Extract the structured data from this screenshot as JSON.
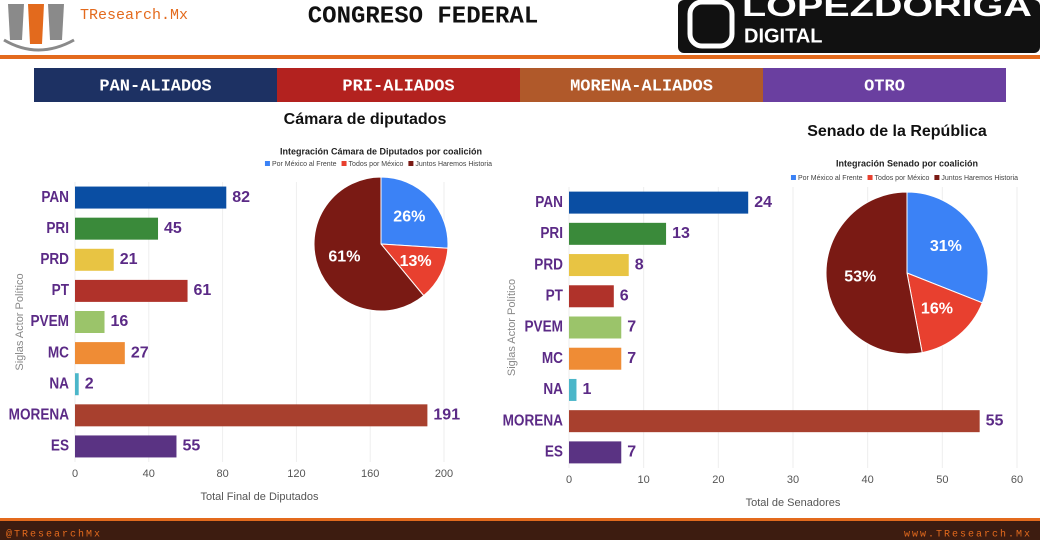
{
  "header": {
    "brand": "TResearch.Mx",
    "title": "CONGRESO FEDERAL",
    "logo_line1": "LOPEZDORIGA",
    "logo_line2": "DIGITAL"
  },
  "coalitions": [
    {
      "label": "PAN-ALIADOS",
      "color": "#1d3163"
    },
    {
      "label": "PRI-ALIADOS",
      "color": "#b3221f"
    },
    {
      "label": "MORENA-ALIADOS",
      "color": "#b0592a"
    },
    {
      "label": "OTRO",
      "color": "#6a3fa0"
    }
  ],
  "footer": {
    "left": "@TResearchMx",
    "right": "www.TResearch.Mx"
  },
  "chart_data": [
    {
      "type": "hbar",
      "title": "Cámara de diputados",
      "y_label": "Siglas Actor Político",
      "x_label": "Total Final de Diputados",
      "categories": [
        "PAN",
        "PRI",
        "PRD",
        "PT",
        "PVEM",
        "MC",
        "NA",
        "MORENA",
        "ES"
      ],
      "values": [
        82,
        45,
        21,
        61,
        16,
        27,
        2,
        191,
        55
      ],
      "colors": [
        "#0a4ea3",
        "#3a8a3a",
        "#e8c443",
        "#b0322a",
        "#9bc46a",
        "#ef8c35",
        "#4bb6c9",
        "#a8402e",
        "#5a3383"
      ],
      "xlim": [
        0,
        200
      ],
      "xticks": [
        0,
        40,
        80,
        120,
        160,
        200
      ],
      "grid": true
    },
    {
      "type": "pie",
      "title": "Integración Cámara de Diputados por coalición",
      "categories": [
        "Por México al Frente",
        "Todos por México",
        "Juntos Haremos Historia"
      ],
      "values": [
        26,
        13,
        61
      ],
      "value_labels": [
        "26%",
        "13%",
        "61%"
      ],
      "colors": [
        "#3b82f6",
        "#e8402f",
        "#7a1a14"
      ]
    },
    {
      "type": "hbar",
      "title": "Senado de la República",
      "y_label": "Siglas Actor Político",
      "x_label": "Total de Senadores",
      "categories": [
        "PAN",
        "PRI",
        "PRD",
        "PT",
        "PVEM",
        "MC",
        "NA",
        "MORENA",
        "ES"
      ],
      "values": [
        24,
        13,
        8,
        6,
        7,
        7,
        1,
        55,
        7
      ],
      "colors": [
        "#0a4ea3",
        "#3a8a3a",
        "#e8c443",
        "#b0322a",
        "#9bc46a",
        "#ef8c35",
        "#4bb6c9",
        "#a8402e",
        "#5a3383"
      ],
      "xlim": [
        0,
        60
      ],
      "xticks": [
        0,
        10,
        20,
        30,
        40,
        50,
        60
      ],
      "grid": true
    },
    {
      "type": "pie",
      "title": "Integración Senado por coalición",
      "categories": [
        "Por México al Frente",
        "Todos por México",
        "Juntos Haremos Historia"
      ],
      "values": [
        31,
        16,
        53
      ],
      "value_labels": [
        "31%",
        "16%",
        "53%"
      ],
      "colors": [
        "#3b82f6",
        "#e8402f",
        "#7a1a14"
      ]
    }
  ]
}
